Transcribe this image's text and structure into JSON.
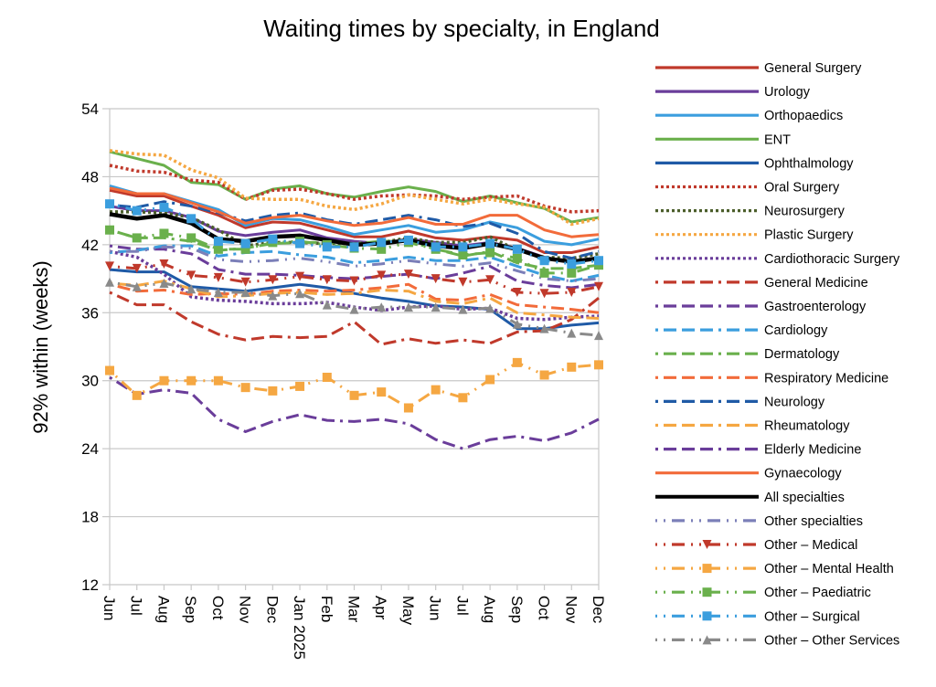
{
  "chart_data": {
    "type": "line",
    "title": "Waiting times by specialty, in England",
    "xlabel": "",
    "ylabel": "92% within (weeks)",
    "ylim": [
      12,
      54
    ],
    "yticks": [
      12,
      18,
      24,
      30,
      36,
      42,
      48,
      54
    ],
    "grid": true,
    "legend_position": "right",
    "categories": [
      "Jun",
      "Jul",
      "Aug",
      "Sep",
      "Oct",
      "Nov",
      "Dec",
      "Jan 2025",
      "Feb",
      "Mar",
      "Apr",
      "May",
      "Jun",
      "Jul",
      "Aug",
      "Sep",
      "Oct",
      "Nov",
      "Dec"
    ],
    "series": [
      {
        "name": "General Surgery",
        "color": "#c0392b",
        "style": "solid",
        "marker": "none",
        "values": [
          46.8,
          46.3,
          46.3,
          45.4,
          44.6,
          43.5,
          44.0,
          43.9,
          43.3,
          42.7,
          42.7,
          43.2,
          42.6,
          42.4,
          42.7,
          42.4,
          41.3,
          41.3,
          41.8
        ]
      },
      {
        "name": "Urology",
        "color": "#6a3d9a",
        "style": "solid",
        "marker": "none",
        "values": [
          45.4,
          45.0,
          45.0,
          44.4,
          43.2,
          42.8,
          43.1,
          43.3,
          42.6,
          42.3,
          42.1,
          42.5,
          42.2,
          41.9,
          42.2,
          41.7,
          40.9,
          40.4,
          40.8
        ]
      },
      {
        "name": "Orthopaedics",
        "color": "#3b9ede",
        "style": "solid",
        "marker": "none",
        "values": [
          47.2,
          46.5,
          46.5,
          45.8,
          45.1,
          43.7,
          44.3,
          44.2,
          43.6,
          42.9,
          43.3,
          43.7,
          43.1,
          43.3,
          44.0,
          43.5,
          42.3,
          42.0,
          42.5
        ]
      },
      {
        "name": "ENT",
        "color": "#6ab04c",
        "style": "solid",
        "marker": "none",
        "values": [
          50.2,
          49.6,
          49.0,
          47.5,
          47.3,
          46.0,
          46.9,
          47.2,
          46.5,
          46.2,
          46.7,
          47.1,
          46.7,
          45.8,
          46.3,
          45.7,
          45.2,
          44.0,
          44.4
        ]
      },
      {
        "name": "Ophthalmology",
        "color": "#1f5aa6",
        "style": "solid",
        "marker": "none",
        "values": [
          39.8,
          39.6,
          39.6,
          38.3,
          38.1,
          37.9,
          38.2,
          38.5,
          38.2,
          37.7,
          37.3,
          37.0,
          36.6,
          36.5,
          36.3,
          34.6,
          34.6,
          34.9,
          35.1
        ]
      },
      {
        "name": "Oral Surgery",
        "color": "#c0392b",
        "style": "dotted",
        "marker": "none",
        "values": [
          49.0,
          48.5,
          48.4,
          47.7,
          47.5,
          46.0,
          46.8,
          46.9,
          46.5,
          46.0,
          46.3,
          46.4,
          46.3,
          46.0,
          46.2,
          46.3,
          45.4,
          44.9,
          45.0
        ]
      },
      {
        "name": "Neurosurgery",
        "color": "#4b5e2a",
        "style": "dotted",
        "marker": "none",
        "values": [
          44.9,
          44.9,
          44.8,
          44.4,
          43.3,
          41.9,
          42.2,
          42.2,
          42.1,
          42.1,
          42.2,
          42.6,
          42.2,
          42.2,
          42.7,
          41.5,
          40.9,
          40.8,
          41.2
        ]
      },
      {
        "name": "Plastic Surgery",
        "color": "#f5a742",
        "style": "dotted",
        "marker": "none",
        "values": [
          50.3,
          50.0,
          49.9,
          48.6,
          47.9,
          46.1,
          46.0,
          46.0,
          45.4,
          45.1,
          45.6,
          46.4,
          46.0,
          45.6,
          46.0,
          45.6,
          45.3,
          43.8,
          44.3
        ]
      },
      {
        "name": "Cardiothoracic Surgery",
        "color": "#6a3d9a",
        "style": "dotted",
        "marker": "none",
        "values": [
          41.4,
          40.9,
          39.4,
          37.4,
          37.1,
          37.0,
          36.8,
          36.8,
          36.9,
          36.5,
          36.2,
          36.5,
          36.6,
          36.3,
          36.4,
          35.5,
          35.4,
          35.6,
          35.7
        ]
      },
      {
        "name": "General Medicine",
        "color": "#c0392b",
        "style": "dashdot",
        "marker": "none",
        "values": [
          37.8,
          36.7,
          36.7,
          35.2,
          34.1,
          33.6,
          33.9,
          33.8,
          33.9,
          35.2,
          33.2,
          33.7,
          33.3,
          33.6,
          33.3,
          34.3,
          34.4,
          35.4,
          37.3
        ]
      },
      {
        "name": "Gastroenterology",
        "color": "#6a3d9a",
        "style": "dashdot",
        "marker": "none",
        "values": [
          41.9,
          41.6,
          41.6,
          41.2,
          39.8,
          39.4,
          39.4,
          39.3,
          39.1,
          39.0,
          39.2,
          39.4,
          39.0,
          39.5,
          40.1,
          38.8,
          38.4,
          38.2,
          38.5
        ]
      },
      {
        "name": "Cardiology",
        "color": "#3b9ede",
        "style": "dashdot",
        "marker": "none",
        "values": [
          41.3,
          41.5,
          41.9,
          41.9,
          41.0,
          41.3,
          41.4,
          41.1,
          40.9,
          40.4,
          40.6,
          40.9,
          40.6,
          40.6,
          40.9,
          40.1,
          39.3,
          38.8,
          39.3
        ]
      },
      {
        "name": "Dermatology",
        "color": "#6ab04c",
        "style": "dashdot",
        "marker": "none",
        "values": [
          43.3,
          42.6,
          42.6,
          42.3,
          41.5,
          41.7,
          42.1,
          42.2,
          42.2,
          42.1,
          42.3,
          42.3,
          41.6,
          41.0,
          41.4,
          40.4,
          39.9,
          39.9,
          40.2
        ]
      },
      {
        "name": "Respiratory Medicine",
        "color": "#f26b3a",
        "style": "dashdot",
        "marker": "none",
        "values": [
          38.5,
          37.9,
          38.0,
          37.6,
          37.7,
          37.6,
          37.9,
          38.0,
          37.9,
          38.0,
          38.2,
          38.5,
          37.2,
          37.1,
          37.6,
          36.7,
          36.5,
          36.3,
          36.0
        ]
      },
      {
        "name": "Neurology",
        "color": "#1f5aa6",
        "style": "dashdot",
        "marker": "none",
        "values": [
          45.5,
          45.3,
          45.8,
          45.4,
          44.8,
          44.1,
          44.6,
          44.8,
          44.2,
          43.8,
          44.2,
          44.6,
          44.2,
          43.6,
          43.9,
          43.0,
          41.4,
          40.8,
          41.4
        ]
      },
      {
        "name": "Rheumatology",
        "color": "#f5a742",
        "style": "dashdot",
        "marker": "none",
        "values": [
          38.6,
          38.4,
          38.8,
          38.1,
          37.4,
          37.5,
          37.7,
          37.8,
          37.6,
          37.7,
          38.0,
          37.9,
          37.0,
          36.8,
          37.3,
          36.0,
          35.8,
          35.6,
          35.5
        ]
      },
      {
        "name": "Elderly Medicine",
        "color": "#6a3d9a",
        "style": "dashdot",
        "marker": "none",
        "values": [
          30.3,
          28.8,
          29.2,
          28.9,
          26.6,
          25.5,
          26.4,
          27.0,
          26.5,
          26.4,
          26.6,
          26.2,
          24.8,
          24.0,
          24.8,
          25.1,
          24.7,
          25.4,
          26.6
        ]
      },
      {
        "name": "Gynaecology",
        "color": "#f26b3a",
        "style": "solid",
        "marker": "none",
        "values": [
          47.0,
          46.5,
          46.5,
          45.7,
          44.9,
          43.9,
          44.4,
          44.6,
          44.1,
          43.7,
          43.9,
          44.4,
          43.8,
          43.8,
          44.6,
          44.6,
          43.3,
          42.7,
          42.9
        ]
      },
      {
        "name": "All specialties",
        "color": "#000000",
        "style": "solid-thick",
        "marker": "none",
        "values": [
          44.7,
          44.3,
          44.6,
          43.9,
          42.5,
          42.3,
          42.7,
          42.8,
          42.4,
          42.0,
          42.1,
          42.4,
          41.9,
          41.7,
          42.1,
          41.6,
          40.8,
          40.5,
          40.8
        ]
      },
      {
        "name": "Other specialties",
        "color": "#7b7fb8",
        "style": "dashdotdot",
        "marker": "none",
        "values": [
          41.4,
          41.4,
          41.8,
          41.7,
          40.7,
          40.5,
          40.6,
          40.8,
          40.5,
          40.1,
          40.3,
          40.6,
          40.3,
          40.1,
          40.4,
          39.7,
          39.0,
          38.8,
          39.0
        ]
      },
      {
        "name": "Other – Medical",
        "color": "#c0392b",
        "style": "dashdotdot",
        "marker": "triangle-down",
        "values": [
          40.1,
          39.9,
          40.3,
          39.3,
          39.1,
          38.7,
          38.9,
          39.2,
          38.9,
          38.8,
          39.3,
          39.4,
          39.0,
          38.7,
          38.9,
          37.8,
          37.7,
          37.8,
          38.3
        ]
      },
      {
        "name": "Other – Mental Health",
        "color": "#f5a742",
        "style": "dashdotdot",
        "marker": "square",
        "values": [
          30.9,
          28.7,
          30.0,
          30.0,
          30.0,
          29.4,
          29.1,
          29.5,
          30.3,
          28.7,
          29.0,
          27.6,
          29.2,
          28.5,
          30.1,
          31.6,
          30.5,
          31.2,
          31.4
        ]
      },
      {
        "name": "Other – Paediatric",
        "color": "#6ab04c",
        "style": "dashdotdot",
        "marker": "square",
        "values": [
          43.3,
          42.6,
          43.0,
          42.6,
          41.6,
          41.6,
          42.2,
          42.3,
          42.0,
          41.7,
          41.6,
          42.2,
          41.6,
          41.1,
          41.3,
          40.8,
          39.5,
          39.5,
          40.2
        ]
      },
      {
        "name": "Other – Surgical",
        "color": "#3b9ede",
        "style": "dashdotdot",
        "marker": "square",
        "values": [
          45.6,
          45.0,
          45.3,
          44.3,
          42.3,
          42.1,
          42.5,
          42.1,
          41.8,
          41.8,
          42.2,
          42.4,
          41.8,
          41.8,
          42.1,
          41.6,
          40.6,
          40.3,
          40.6
        ]
      },
      {
        "name": "Other – Other Services",
        "color": "#8a8a8a",
        "style": "dashdotdot",
        "marker": "triangle-up",
        "values": [
          38.7,
          38.3,
          38.6,
          38.1,
          37.8,
          37.8,
          37.5,
          37.7,
          36.7,
          36.3,
          36.5,
          36.5,
          36.5,
          36.3,
          36.4,
          35.0,
          34.6,
          34.2,
          34.0
        ]
      }
    ]
  }
}
